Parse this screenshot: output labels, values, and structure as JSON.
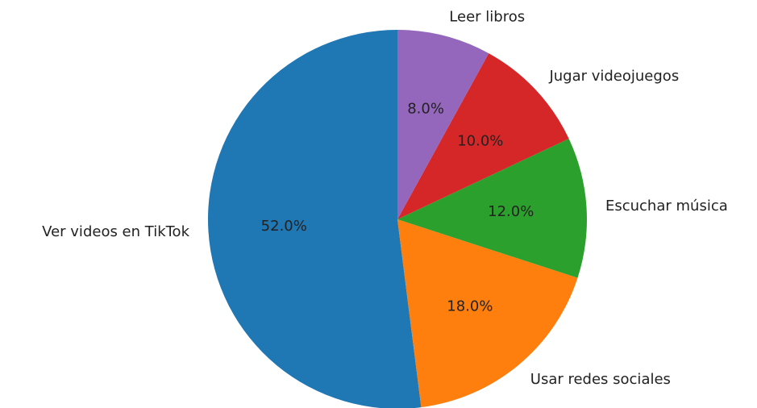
{
  "chart_data": {
    "type": "pie",
    "categories": [
      "Ver videos en TikTok",
      "Usar redes sociales",
      "Escuchar música",
      "Jugar videojuegos",
      "Leer libros"
    ],
    "values": [
      52,
      18,
      12,
      10,
      8
    ],
    "value_labels": [
      "52.0%",
      "18.0%",
      "12.0%",
      "10.0%",
      "8.0%"
    ],
    "colors": [
      "#1f77b4",
      "#ff7f0e",
      "#2ca02c",
      "#d62728",
      "#9467bd"
    ]
  }
}
